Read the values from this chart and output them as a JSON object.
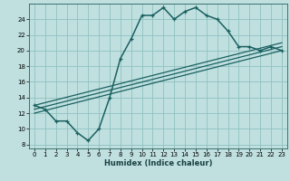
{
  "title": "",
  "xlabel": "Humidex (Indice chaleur)",
  "bg_color": "#c0e0e0",
  "grid_color": "#90c0c0",
  "line_color": "#1a6060",
  "xlim": [
    -0.5,
    23.5
  ],
  "ylim": [
    7.5,
    26.0
  ],
  "xticks": [
    0,
    1,
    2,
    3,
    4,
    5,
    6,
    7,
    8,
    9,
    10,
    11,
    12,
    13,
    14,
    15,
    16,
    17,
    18,
    19,
    20,
    21,
    22,
    23
  ],
  "yticks": [
    8,
    10,
    12,
    14,
    16,
    18,
    20,
    22,
    24
  ],
  "main_x": [
    0,
    1,
    2,
    3,
    4,
    5,
    6,
    7,
    8,
    9,
    10,
    11,
    12,
    13,
    14,
    15,
    16,
    17,
    18,
    19,
    20,
    21,
    22,
    23
  ],
  "main_y": [
    13,
    12.5,
    11,
    11,
    9.5,
    8.5,
    10.0,
    14.0,
    19.0,
    21.5,
    24.5,
    24.5,
    25.5,
    24.0,
    25.0,
    25.5,
    24.5,
    24.0,
    22.5,
    20.5,
    20.5,
    20.0,
    20.5,
    20.0
  ],
  "line2_x": [
    0,
    23
  ],
  "line2_y": [
    12.0,
    20.0
  ],
  "line3_x": [
    0,
    23
  ],
  "line3_y": [
    12.5,
    20.5
  ],
  "line4_x": [
    0,
    23
  ],
  "line4_y": [
    13.0,
    21.0
  ],
  "xlabel_fontsize": 6.0,
  "tick_fontsize": 5.0
}
